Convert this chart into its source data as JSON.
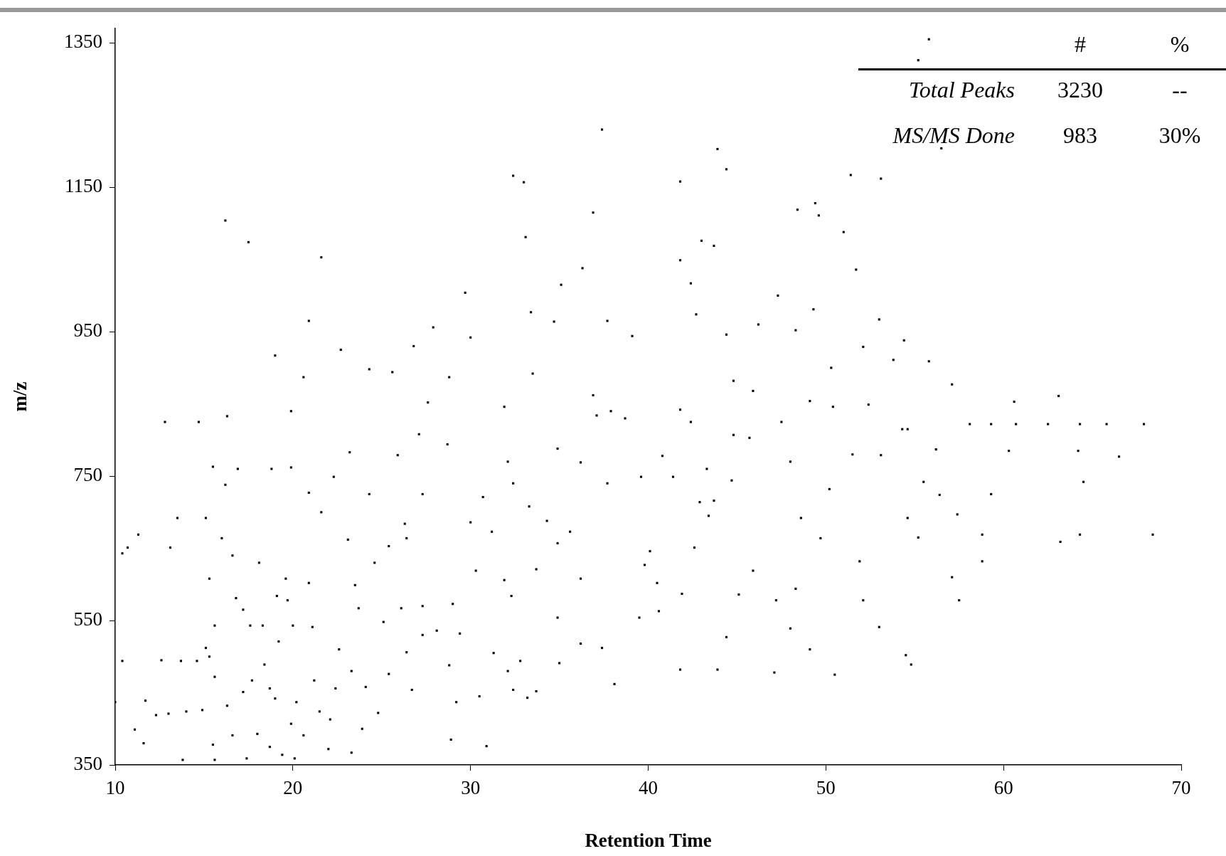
{
  "chart_data": {
    "type": "scatter",
    "xlabel": "Retention Time",
    "ylabel": "m/z",
    "xlim": [
      10,
      70
    ],
    "xticks": [
      10,
      20,
      30,
      40,
      50,
      60,
      70
    ],
    "ylim": [
      350,
      1370
    ],
    "yticks": [
      350,
      550,
      750,
      950,
      1150,
      1350
    ],
    "grid": false,
    "legend": false,
    "marker": "square",
    "annotations": [
      "#",
      "%",
      "Total Peaks",
      "3230",
      "--",
      "MS/MS Done",
      "983",
      "30%"
    ],
    "series": [
      {
        "color": "#000000",
        "x": [
          55.2,
          55.8,
          37.4,
          43.9,
          56.5,
          44.4,
          32.4,
          33.0,
          41.8,
          51.4,
          53.1,
          16.2,
          17.5,
          36.9,
          48.4,
          49.4,
          49.6,
          51.0,
          33.1,
          43.0,
          43.7,
          21.6,
          41.8,
          51.7,
          36.3,
          42.4,
          35.1,
          29.7,
          47.3,
          49.3,
          33.4,
          42.7,
          20.9,
          27.9,
          34.7,
          53.0,
          37.7,
          46.2,
          44.4,
          30.0,
          48.3,
          39.1,
          52.1,
          22.7,
          26.8,
          53.8,
          19.0,
          54.4,
          55.8,
          50.3,
          24.3,
          25.6,
          20.6,
          28.8,
          33.5,
          44.8,
          45.9,
          57.1,
          49.1,
          54.6,
          16.3,
          12.8,
          14.7,
          19.9,
          27.6,
          31.9,
          36.9,
          41.8,
          47.5,
          50.4,
          52.4,
          60.6,
          63.1,
          62.5,
          64.3,
          65.8,
          67.9,
          66.5,
          68.4,
          64.2,
          64.5,
          63.2,
          64.3,
          60.3,
          59.3,
          60.7,
          58.1,
          58.8,
          58.8,
          59.3,
          57.4,
          56.4,
          55.5,
          56.2,
          54.6,
          55.2,
          57.5,
          57.1,
          54.5,
          54.8,
          50.5,
          49.1,
          48.3,
          48.6,
          49.7,
          51.9,
          52.1,
          53.0,
          53.1,
          51.5,
          54.3,
          45.7,
          50.2,
          44.7,
          43.7,
          45.9,
          45.1,
          47.2,
          48.0,
          47.1,
          44.4,
          43.9,
          41.8,
          41.9,
          40.6,
          42.6,
          43.4,
          42.9,
          43.3,
          41.4,
          39.6,
          37.7,
          40.1,
          39.8,
          40.5,
          39.5,
          38.1,
          37.4,
          36.2,
          36.2,
          34.9,
          35.0,
          34.9,
          35.6,
          34.3,
          33.7,
          33.3,
          32.4,
          32.1,
          30.7,
          31.2,
          30.0,
          30.3,
          32.3,
          31.9,
          29.0,
          29.4,
          28.8,
          29.2,
          28.9,
          30.9,
          30.5,
          31.3,
          32.1,
          32.8,
          32.4,
          33.2,
          33.7,
          25.4,
          26.7,
          25.1,
          26.1,
          27.3,
          26.4,
          27.3,
          28.1,
          25.4,
          26.3,
          24.6,
          23.5,
          23.1,
          23.7,
          23.3,
          24.1,
          24.8,
          23.9,
          23.3,
          27.3,
          26.4,
          27.1,
          28.7,
          25.9,
          23.2,
          24.3,
          22.3,
          21.6,
          20.9,
          19.9,
          19.7,
          19.6,
          20.9,
          21.1,
          20.0,
          18.3,
          18.4,
          19.2,
          18.1,
          17.2,
          16.8,
          17.6,
          16.6,
          16.0,
          16.2,
          15.5,
          15.3,
          15.6,
          15.3,
          15.6,
          15.1,
          14.6,
          13.7,
          14.9,
          15.5,
          15.6,
          16.6,
          16.3,
          17.2,
          17.4,
          18.0,
          18.7,
          19.4,
          19.0,
          19.9,
          20.2,
          20.1,
          21.2,
          21.5,
          22.1,
          22.0,
          22.4,
          22.6,
          20.6,
          18.7,
          17.7,
          14.0,
          13.0,
          12.3,
          11.7,
          11.1,
          11.6,
          10.0,
          10.4,
          12.6,
          13.8,
          10.4,
          10.7,
          11.3,
          13.1,
          13.5,
          15.1,
          16.9,
          18.8,
          19.1,
          34.9,
          36.2,
          37.9,
          38.7,
          37.1,
          40.8,
          42.4,
          44.8,
          48.0
        ],
        "values": [
          1326,
          1355,
          1230,
          1203,
          1204,
          1175,
          1166,
          1157,
          1158,
          1167,
          1162,
          1104,
          1074,
          1115,
          1119,
          1128,
          1111,
          1088,
          1081,
          1076,
          1069,
          1053,
          1049,
          1036,
          1038,
          1017,
          1015,
          1004,
          1000,
          981,
          977,
          974,
          965,
          956,
          964,
          967,
          965,
          960,
          946,
          942,
          952,
          944,
          929,
          925,
          930,
          911,
          917,
          938,
          909,
          900,
          898,
          894,
          887,
          887,
          892,
          882,
          868,
          877,
          854,
          815,
          833,
          825,
          825,
          840,
          852,
          846,
          862,
          842,
          825,
          846,
          849,
          853,
          861,
          822,
          822,
          822,
          822,
          777,
          669,
          785,
          742,
          659,
          669,
          785,
          822,
          822,
          822,
          669,
          632,
          725,
          697,
          724,
          742,
          787,
          692,
          665,
          578,
          610,
          502,
          489,
          475,
          510,
          594,
          692,
          664,
          632,
          578,
          541,
          779,
          780,
          815,
          803,
          732,
          744,
          716,
          619,
          586,
          578,
          539,
          478,
          527,
          482,
          482,
          587,
          563,
          651,
          695,
          714,
          760,
          749,
          749,
          740,
          646,
          627,
          602,
          554,
          462,
          512,
          608,
          518,
          554,
          491,
          657,
          673,
          688,
          621,
          708,
          740,
          770,
          721,
          673,
          686,
          619,
          584,
          606,
          573,
          532,
          488,
          437,
          385,
          376,
          445,
          505,
          480,
          494,
          454,
          443,
          452,
          476,
          454,
          548,
          567,
          570,
          506,
          530,
          536,
          653,
          684,
          630,
          599,
          662,
          567,
          480,
          458,
          422,
          400,
          367,
          725,
          664,
          808,
          794,
          779,
          783,
          725,
          749,
          700,
          727,
          762,
          578,
          608,
          602,
          541,
          543,
          543,
          489,
          521,
          630,
          565,
          581,
          543,
          640,
          664,
          738,
          763,
          608,
          543,
          500,
          472,
          512,
          494,
          494,
          426,
          378,
          357,
          391,
          432,
          451,
          359,
          393,
          375,
          364,
          442,
          407,
          437,
          359,
          467,
          424,
          413,
          372,
          456,
          510,
          391,
          456,
          467,
          424,
          421,
          419,
          439,
          399,
          380,
          437,
          494,
          495,
          357,
          643,
          651,
          669,
          651,
          692,
          692,
          760,
          760,
          584,
          788,
          769,
          840,
          830,
          834,
          778,
          825,
          807,
          770
        ]
      }
    ]
  }
}
